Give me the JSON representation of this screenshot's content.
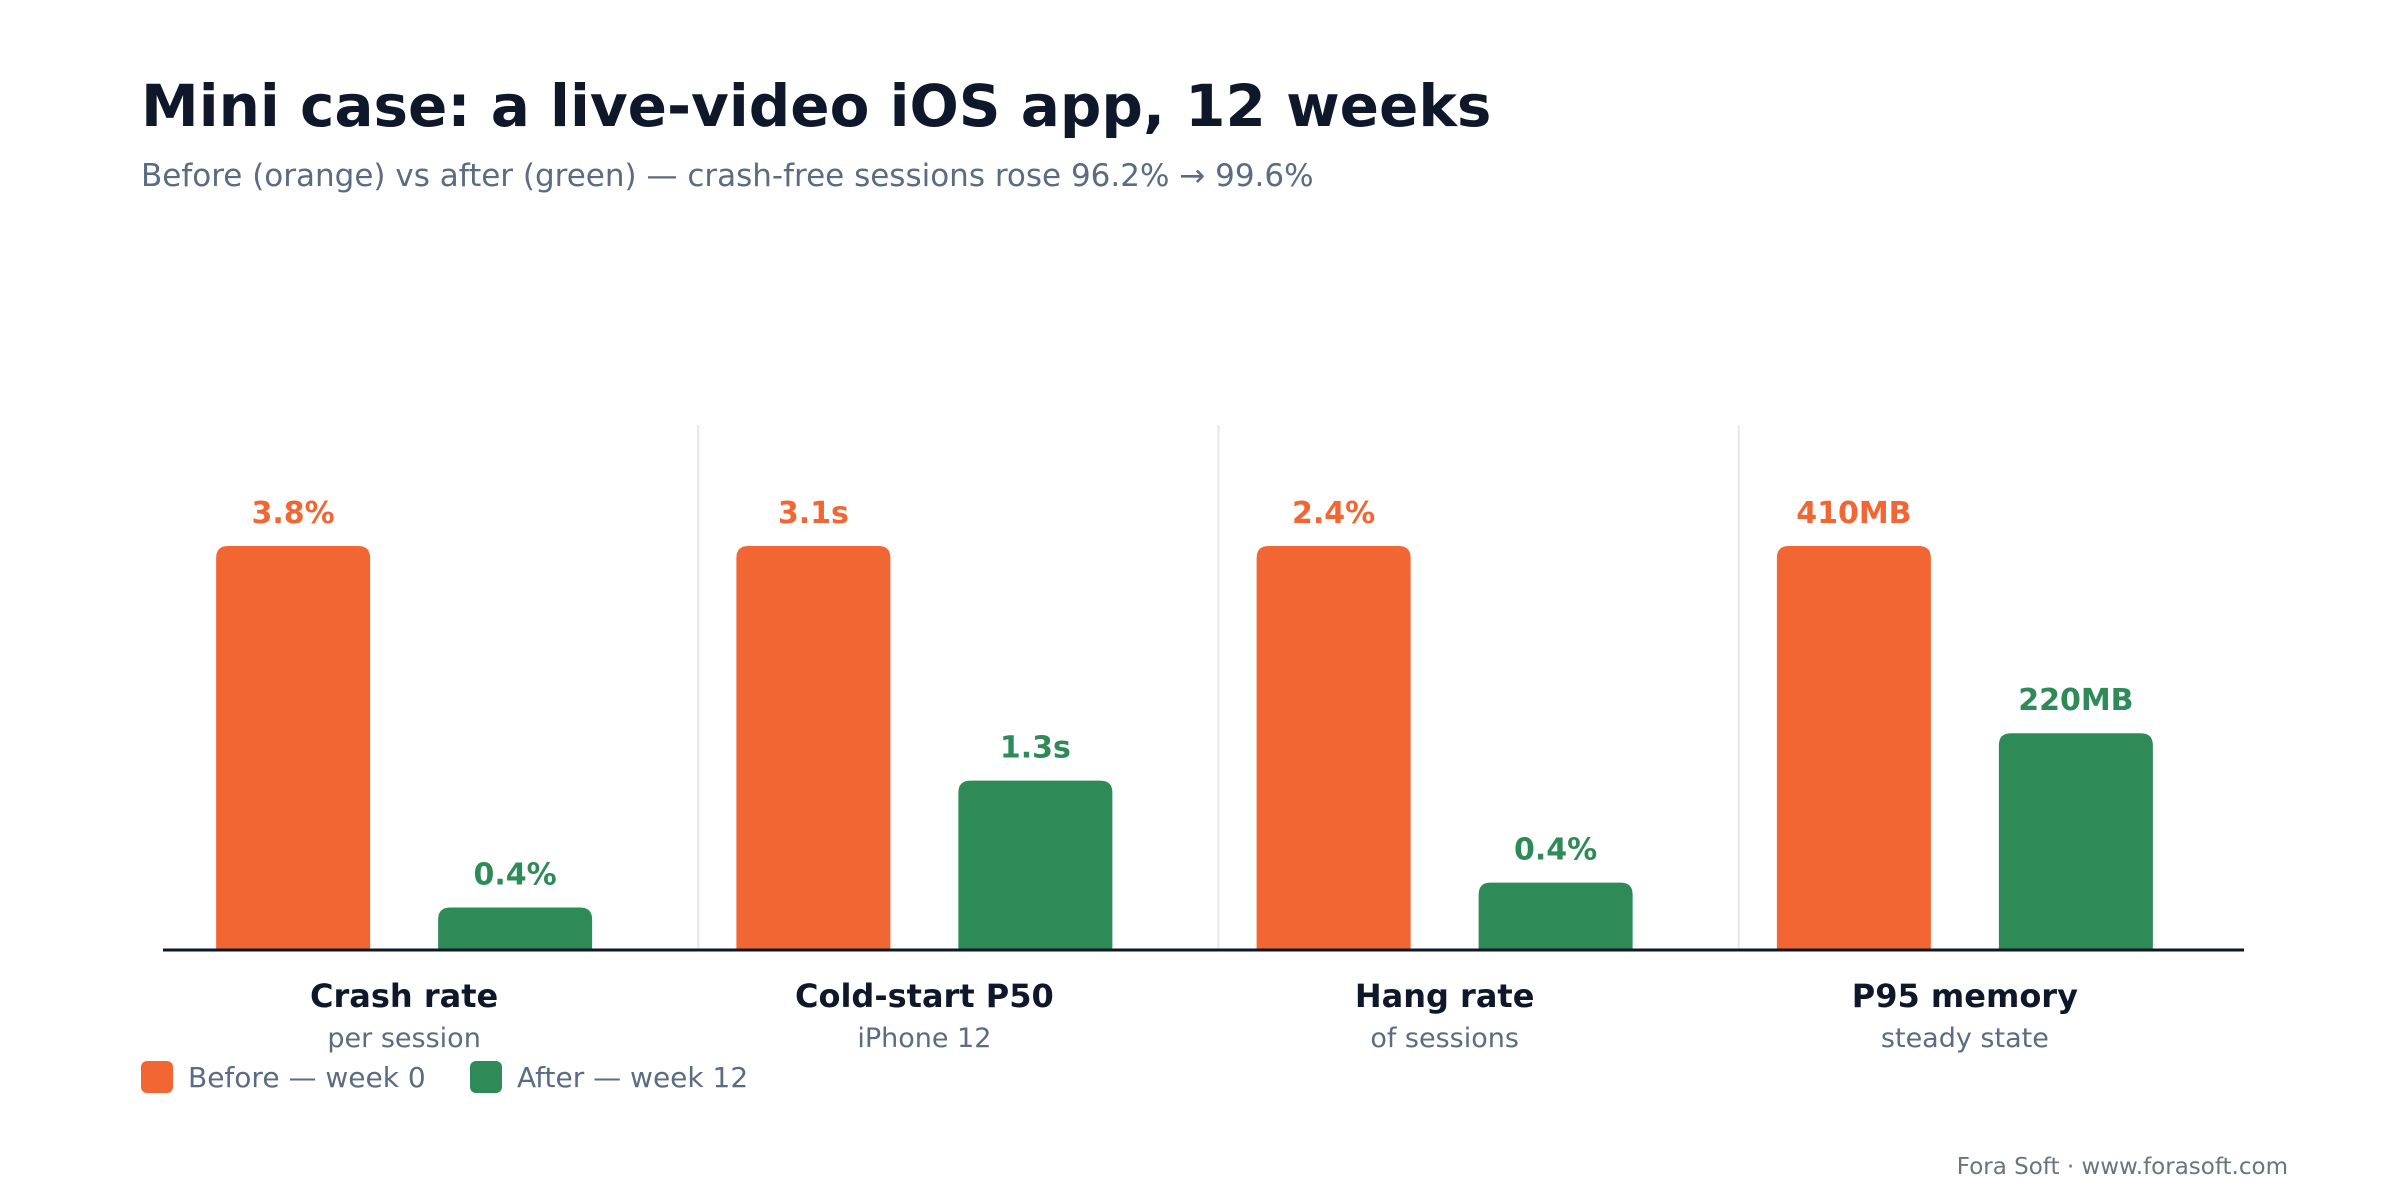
{
  "title": "Mini case: a live-video iOS app, 12 weeks",
  "subtitle": "Before (orange) vs after (green) — crash-free sessions rose 96.2% → 99.6%",
  "footer": "Fora Soft · www.forasoft.com",
  "colors": {
    "before": "#f26633",
    "after": "#2e8b57",
    "baseline": "#0f172a",
    "divider": "#e5e7eb"
  },
  "legend": {
    "placement": "bottom-left",
    "items": [
      {
        "label": "Before — week 0",
        "color": "#f26633"
      },
      {
        "label": "After — week 12",
        "color": "#2e8b57"
      }
    ]
  },
  "chart_data": {
    "type": "bar",
    "title": "Mini case: a live-video iOS app, 12 weeks",
    "subtitle": "Before (orange) vs after (green) — crash-free sessions rose 96.2% → 99.6%",
    "grid": false,
    "normalized_per_category": true,
    "categories": [
      {
        "label": "Crash rate",
        "sublabel": "per session"
      },
      {
        "label": "Cold-start P50",
        "sublabel": "iPhone 12"
      },
      {
        "label": "Hang rate",
        "sublabel": "of sessions"
      },
      {
        "label": "P95 memory",
        "sublabel": "steady state"
      }
    ],
    "series": [
      {
        "name": "Before — week 0",
        "values": [
          3.8,
          3.1,
          2.4,
          410
        ],
        "labels": [
          "3.8%",
          "3.1s",
          "2.4%",
          "410MB"
        ]
      },
      {
        "name": "After — week 12",
        "values": [
          0.4,
          1.3,
          0.4,
          220
        ],
        "labels": [
          "0.4%",
          "1.3s",
          "0.4%",
          "220MB"
        ]
      }
    ]
  }
}
